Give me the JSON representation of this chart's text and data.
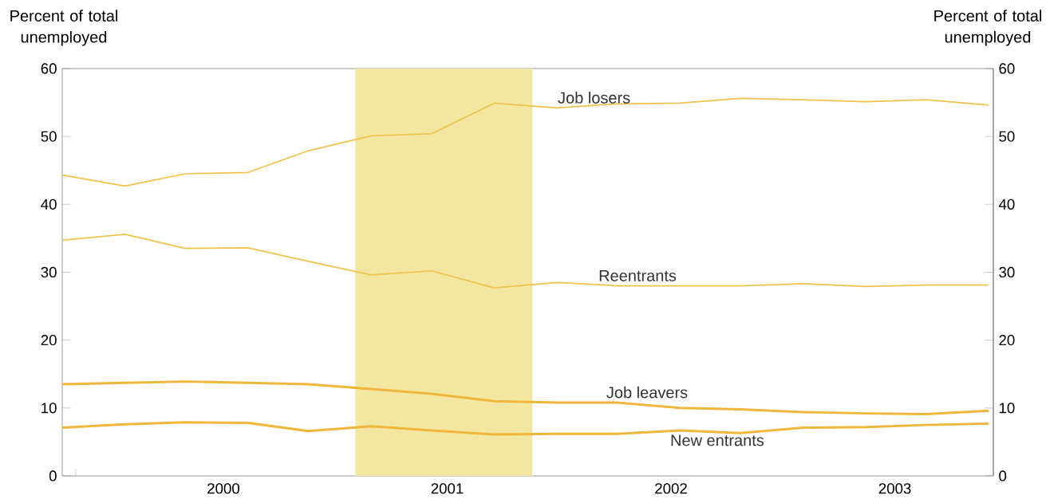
{
  "chart_data": {
    "type": "line",
    "ylabel": "Percent of total unemployed",
    "y2label": "Percent of total unemployed",
    "x": [
      1999.78,
      2000.06,
      2000.33,
      2000.61,
      2000.88,
      2001.16,
      2001.43,
      2001.71,
      2001.99,
      2002.26,
      2002.54,
      2002.81,
      2003.09,
      2003.37,
      2003.64,
      2003.92
    ],
    "series": [
      {
        "name": "Job losers",
        "color": "#f0c24a",
        "values": [
          44.3,
          42.7,
          44.5,
          44.7,
          47.9,
          50.1,
          50.4,
          54.9,
          54.2,
          54.8,
          54.9,
          55.6,
          55.4,
          55.1,
          55.4,
          54.6
        ]
      },
      {
        "name": "Reentrants",
        "color": "#f0c24a",
        "values": [
          34.7,
          35.6,
          33.5,
          33.6,
          31.6,
          29.6,
          30.2,
          27.7,
          28.5,
          28.0,
          28.0,
          28.0,
          28.3,
          27.9,
          28.1,
          28.1
        ]
      },
      {
        "name": "Job leavers",
        "color": "#f0b63a",
        "values": [
          13.5,
          13.7,
          13.9,
          13.7,
          13.5,
          12.8,
          12.1,
          11.0,
          10.8,
          10.8,
          10.0,
          9.8,
          9.4,
          9.2,
          9.1,
          9.6
        ]
      },
      {
        "name": "New entrants",
        "color": "#f0b63a",
        "values": [
          7.1,
          7.6,
          7.9,
          7.8,
          6.6,
          7.3,
          6.7,
          6.1,
          6.2,
          6.2,
          6.7,
          6.3,
          7.1,
          7.2,
          7.5,
          7.7
        ]
      }
    ],
    "xlim": [
      1999.78,
      2003.94
    ],
    "xticks": [
      {
        "value": 1999.84,
        "label": null
      },
      {
        "value": 2000.5,
        "label": "2000"
      },
      {
        "value": 2001.5,
        "label": "2001"
      },
      {
        "value": 2002.5,
        "label": "2002"
      },
      {
        "value": 2003.5,
        "label": "2003"
      }
    ],
    "ylim": [
      0,
      60
    ],
    "yticks": [
      0,
      10,
      20,
      30,
      40,
      50,
      60
    ],
    "y2lim": [
      0,
      60
    ],
    "y2ticks": [
      0,
      10,
      20,
      30,
      40,
      50,
      60
    ],
    "bands": [
      {
        "axis": "x",
        "from": 2001.09,
        "to": 2001.88,
        "color": "#f3e6a0"
      }
    ],
    "grid": false,
    "marker": "none",
    "line_style": "solid"
  }
}
